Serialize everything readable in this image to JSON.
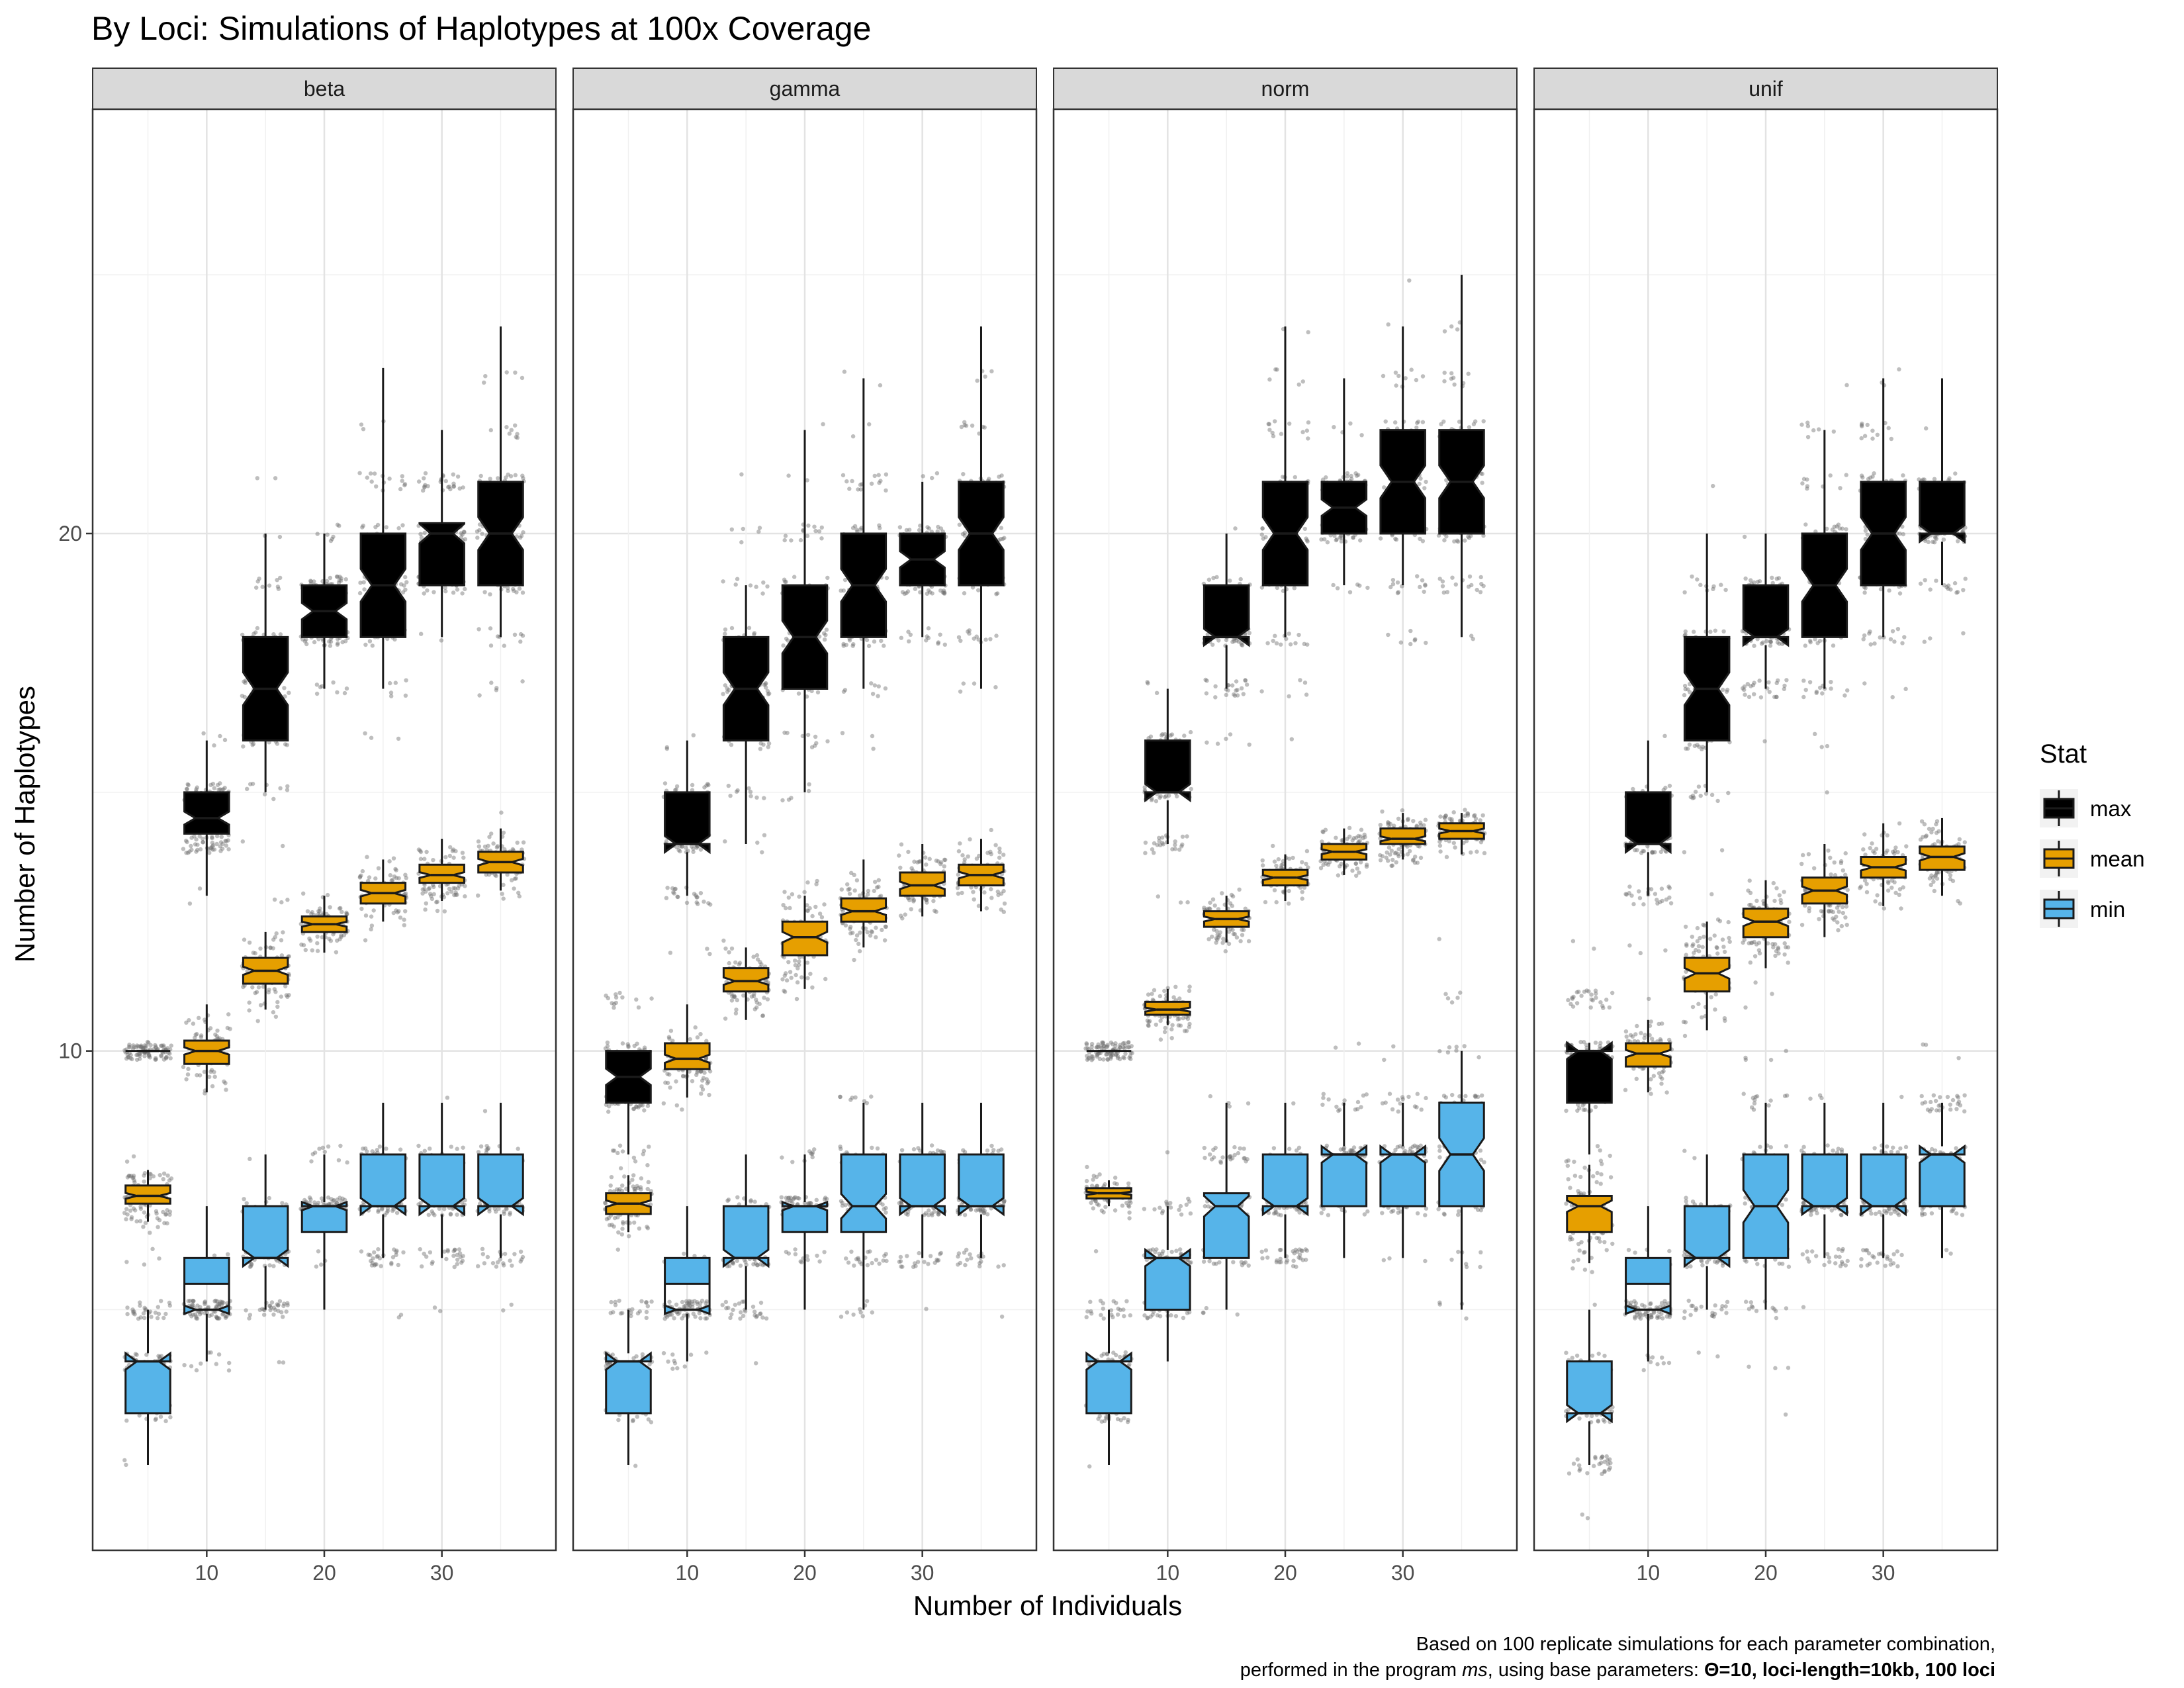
{
  "chart_data": {
    "type": "boxplot",
    "title": "By Loci: Simulations of Haplotypes at 100x Coverage",
    "xlabel": "Number of Individuals",
    "ylabel": "Number of Haplotypes",
    "x": [
      5,
      10,
      15,
      20,
      25,
      30,
      35
    ],
    "x_ticks": [
      10,
      20,
      30
    ],
    "y_ticks": [
      10,
      20
    ],
    "xlim": [
      0.3,
      39.7
    ],
    "ylim": [
      0.35,
      28.2
    ],
    "grid": true,
    "notched": true,
    "jittered_points": true,
    "legend": {
      "title": "Stat",
      "position": "right",
      "entries": [
        {
          "label": "max",
          "color": "#000000"
        },
        {
          "label": "mean",
          "color": "#E69F00"
        },
        {
          "label": "min",
          "color": "#56B4E9"
        }
      ]
    },
    "caption": {
      "line1": "Based on 100 replicate simulations for each parameter combination,",
      "line2_plain": "performed in the program ",
      "line2_italic": "ms",
      "line2_mid": ", using base parameters: ",
      "line2_bold": "Θ=10, loci-length=10kb, 100 loci"
    },
    "facets": [
      {
        "name": "beta",
        "series": [
          {
            "stat": "max",
            "q1": [
              10,
              14.2,
              16,
              18,
              18,
              19,
              19
            ],
            "median": [
              10,
              14.5,
              17,
              18.5,
              19,
              20,
              20
            ],
            "q3": [
              10,
              15,
              18,
              19,
              20,
              20.2,
              21
            ],
            "lower": [
              10,
              13,
              15,
              17,
              17,
              18,
              18
            ],
            "upper": [
              10,
              16,
              20,
              20,
              23.2,
              22,
              24
            ]
          },
          {
            "stat": "mean",
            "q1": [
              7.05,
              9.75,
              11.3,
              12.3,
              12.85,
              13.25,
              13.45
            ],
            "median": [
              7.2,
              10,
              11.55,
              12.45,
              13.05,
              13.4,
              13.65
            ],
            "q3": [
              7.4,
              10.2,
              11.8,
              12.6,
              13.25,
              13.6,
              13.85
            ],
            "lower": [
              6.7,
              9.2,
              10.8,
              11.9,
              12.5,
              12.9,
              13.1
            ],
            "upper": [
              7.7,
              10.9,
              12.3,
              13,
              13.7,
              14.1,
              14.3
            ]
          },
          {
            "stat": "min",
            "q1": [
              3,
              5.5,
              6,
              6.5,
              7,
              7,
              7
            ],
            "median": [
              4,
              5,
              6,
              7,
              7,
              7,
              7
            ],
            "q3": [
              4,
              6,
              7,
              7,
              8,
              8,
              8
            ],
            "lower": [
              2,
              4,
              5,
              5,
              6,
              6,
              6
            ],
            "upper": [
              5,
              7,
              8,
              8,
              9,
              9,
              9
            ]
          }
        ]
      },
      {
        "name": "gamma",
        "series": [
          {
            "stat": "max",
            "q1": [
              9,
              14,
              16,
              17,
              18,
              19,
              19
            ],
            "median": [
              9.5,
              14,
              17,
              18,
              19,
              19.5,
              20
            ],
            "q3": [
              10,
              15,
              18,
              19,
              20,
              20,
              21
            ],
            "lower": [
              8,
              13,
              14,
              15,
              17,
              18,
              17
            ],
            "upper": [
              10,
              16,
              19,
              22,
              23,
              21,
              24
            ]
          },
          {
            "stat": "mean",
            "q1": [
              6.85,
              9.65,
              11.15,
              11.85,
              12.5,
              13,
              13.2
            ],
            "median": [
              7.05,
              9.85,
              11.35,
              12.2,
              12.7,
              13.2,
              13.4
            ],
            "q3": [
              7.25,
              10.15,
              11.6,
              12.5,
              12.95,
              13.45,
              13.6
            ],
            "lower": [
              6.5,
              9.1,
              10.6,
              11.2,
              12,
              12.6,
              12.7
            ],
            "upper": [
              7.6,
              10.9,
              12,
              13,
              13.7,
              14,
              14.1
            ]
          },
          {
            "stat": "min",
            "q1": [
              3,
              5.5,
              6,
              6.5,
              6.5,
              7,
              7
            ],
            "median": [
              4,
              5,
              6,
              7,
              7,
              7,
              7
            ],
            "q3": [
              4,
              6,
              7,
              7,
              8,
              8,
              8
            ],
            "lower": [
              2,
              4,
              5,
              5,
              5,
              6,
              6
            ],
            "upper": [
              5,
              7,
              8,
              8,
              9,
              9,
              9
            ]
          }
        ]
      },
      {
        "name": "norm",
        "series": [
          {
            "stat": "max",
            "q1": [
              10,
              15,
              18,
              19,
              20,
              20,
              20
            ],
            "median": [
              10,
              15,
              18,
              20,
              20.5,
              21,
              21
            ],
            "q3": [
              10,
              16,
              19,
              21,
              21,
              22,
              22
            ],
            "lower": [
              10,
              14,
              17,
              18,
              19,
              19,
              18
            ],
            "upper": [
              10,
              17,
              20,
              24,
              23,
              24,
              25
            ]
          },
          {
            "stat": "mean",
            "q1": [
              7.15,
              10.7,
              12.4,
              13.2,
              13.7,
              14,
              14.1
            ],
            "median": [
              7.25,
              10.8,
              12.55,
              13.35,
              13.85,
              14.1,
              14.25
            ],
            "q3": [
              7.35,
              10.95,
              12.7,
              13.5,
              14,
              14.3,
              14.4
            ],
            "lower": [
              7.0,
              10.5,
              12.1,
              12.9,
              13.4,
              13.7,
              13.8
            ],
            "upper": [
              7.5,
              11.2,
              13,
              13.8,
              14.3,
              14.6,
              14.6
            ]
          },
          {
            "stat": "min",
            "q1": [
              3,
              5,
              6,
              7,
              7,
              7,
              7
            ],
            "median": [
              4,
              6,
              7,
              7,
              8,
              8,
              8
            ],
            "q3": [
              4,
              6,
              7.25,
              8,
              8,
              8,
              9
            ],
            "lower": [
              2,
              4,
              5,
              6,
              6,
              6,
              5
            ],
            "upper": [
              5,
              7,
              9,
              9,
              9,
              9,
              10
            ]
          }
        ]
      },
      {
        "name": "unif",
        "series": [
          {
            "stat": "max",
            "q1": [
              9,
              14,
              16,
              18,
              18,
              19,
              20
            ],
            "median": [
              10,
              14,
              17,
              18,
              19,
              20,
              20
            ],
            "q3": [
              10,
              15,
              18,
              19,
              20,
              21,
              21
            ],
            "lower": [
              8,
              13,
              15,
              17,
              17,
              18,
              19
            ],
            "upper": [
              10,
              16,
              20,
              20,
              22,
              23,
              23
            ]
          },
          {
            "stat": "mean",
            "q1": [
              6.5,
              9.7,
              11.15,
              12.2,
              12.85,
              13.35,
              13.5
            ],
            "median": [
              7.0,
              9.95,
              11.5,
              12.5,
              13.1,
              13.55,
              13.75
            ],
            "q3": [
              7.2,
              10.15,
              11.8,
              12.75,
              13.35,
              13.75,
              13.95
            ],
            "lower": [
              5.9,
              9.2,
              10.4,
              11.6,
              12.2,
              12.8,
              13
            ],
            "upper": [
              7.8,
              10.6,
              12.5,
              13.3,
              14,
              14.4,
              14.5
            ]
          },
          {
            "stat": "min",
            "q1": [
              3,
              5.5,
              6,
              6,
              7,
              7,
              7
            ],
            "median": [
              3,
              5,
              6,
              7,
              7,
              7,
              8
            ],
            "q3": [
              4,
              6,
              7,
              8,
              8,
              8,
              8
            ],
            "lower": [
              2,
              4,
              5,
              5,
              6,
              6,
              6
            ],
            "upper": [
              5,
              7,
              8,
              9,
              9,
              9,
              9
            ]
          }
        ]
      }
    ]
  }
}
